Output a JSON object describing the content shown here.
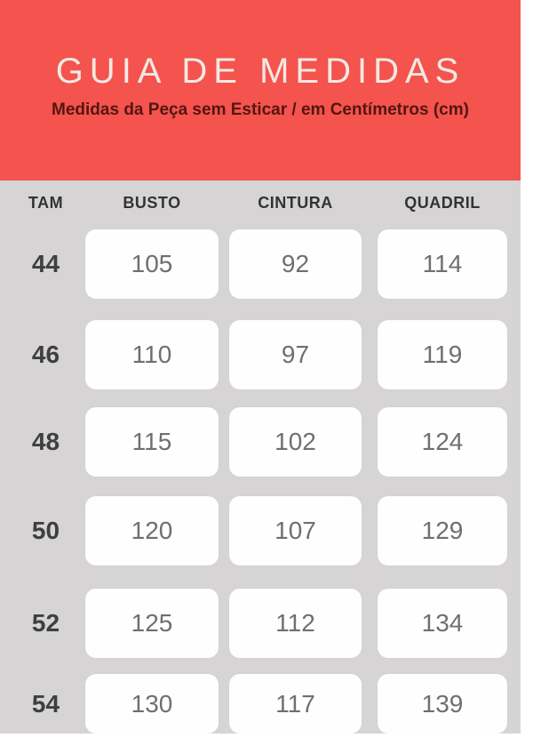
{
  "header": {
    "title": "GUIA DE MEDIDAS",
    "subtitle": "Medidas da Peça sem Esticar / em Centímetros (cm)"
  },
  "table": {
    "columns": [
      "TAM",
      "BUSTO",
      "CINTURA",
      "QUADRIL"
    ],
    "rows": [
      {
        "size": "44",
        "busto": "105",
        "cintura": "92",
        "quadril": "114"
      },
      {
        "size": "46",
        "busto": "110",
        "cintura": "97",
        "quadril": "119"
      },
      {
        "size": "48",
        "busto": "115",
        "cintura": "102",
        "quadril": "124"
      },
      {
        "size": "50",
        "busto": "120",
        "cintura": "107",
        "quadril": "129"
      },
      {
        "size": "52",
        "busto": "125",
        "cintura": "112",
        "quadril": "134"
      },
      {
        "size": "54",
        "busto": "130",
        "cintura": "117",
        "quadril": "139"
      }
    ]
  },
  "colors": {
    "banner_red": "#f4534e",
    "title_text": "#f2e9e2",
    "subtitle_text": "#531610",
    "table_bg": "#d6d4d4",
    "cell_bg": "#fefefe",
    "header_text": "#333333",
    "size_text": "#3f3f3f",
    "value_text": "#6f6f6f"
  },
  "chart_data": {
    "type": "table",
    "title": "GUIA DE MEDIDAS",
    "subtitle": "Medidas da Peça sem Esticar / em Centímetros (cm)",
    "units": "cm",
    "columns": [
      "TAM",
      "BUSTO",
      "CINTURA",
      "QUADRIL"
    ],
    "rows": [
      [
        44,
        105,
        92,
        114
      ],
      [
        46,
        110,
        97,
        119
      ],
      [
        48,
        115,
        102,
        124
      ],
      [
        50,
        120,
        107,
        129
      ],
      [
        52,
        125,
        112,
        134
      ],
      [
        54,
        130,
        117,
        139
      ]
    ]
  }
}
